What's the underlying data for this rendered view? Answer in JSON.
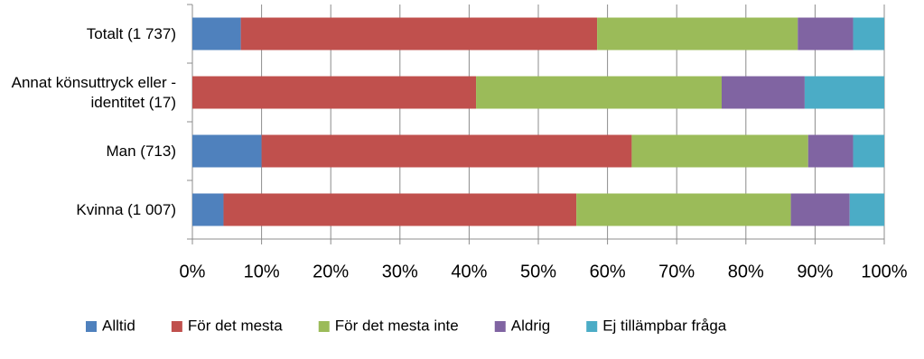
{
  "chart_data": {
    "type": "stacked-bar-horizontal",
    "categories": [
      "Totalt (1 737)",
      "Annat könsuttryck eller -identitet (17)",
      "Man (713)",
      "Kvinna (1 007)"
    ],
    "series": [
      {
        "name": "Alltid",
        "color": "#4f81bd",
        "values": [
          7,
          0,
          10,
          4.5
        ]
      },
      {
        "name": "För det mesta",
        "color": "#c0504d",
        "values": [
          51.5,
          41,
          53.5,
          51
        ]
      },
      {
        "name": "För det mesta inte",
        "color": "#9bbb59",
        "values": [
          29,
          35.5,
          25.5,
          31
        ]
      },
      {
        "name": "Aldrig",
        "color": "#8064a2",
        "values": [
          8,
          12,
          6.5,
          8.5
        ]
      },
      {
        "name": "Ej tillämpbar fråga",
        "color": "#4bacc6",
        "values": [
          4.5,
          11.5,
          4.5,
          5
        ]
      }
    ],
    "xlim": [
      0,
      100
    ],
    "xticks": [
      {
        "value": 0,
        "label": "0%"
      },
      {
        "value": 10,
        "label": "10%"
      },
      {
        "value": 20,
        "label": "20%"
      },
      {
        "value": 30,
        "label": "30%"
      },
      {
        "value": 40,
        "label": "40%"
      },
      {
        "value": 50,
        "label": "50%"
      },
      {
        "value": 60,
        "label": "60%"
      },
      {
        "value": 70,
        "label": "70%"
      },
      {
        "value": 80,
        "label": "80%"
      },
      {
        "value": 90,
        "label": "90%"
      },
      {
        "value": 100,
        "label": "100%"
      }
    ],
    "grid": true,
    "legend": "bottom"
  }
}
